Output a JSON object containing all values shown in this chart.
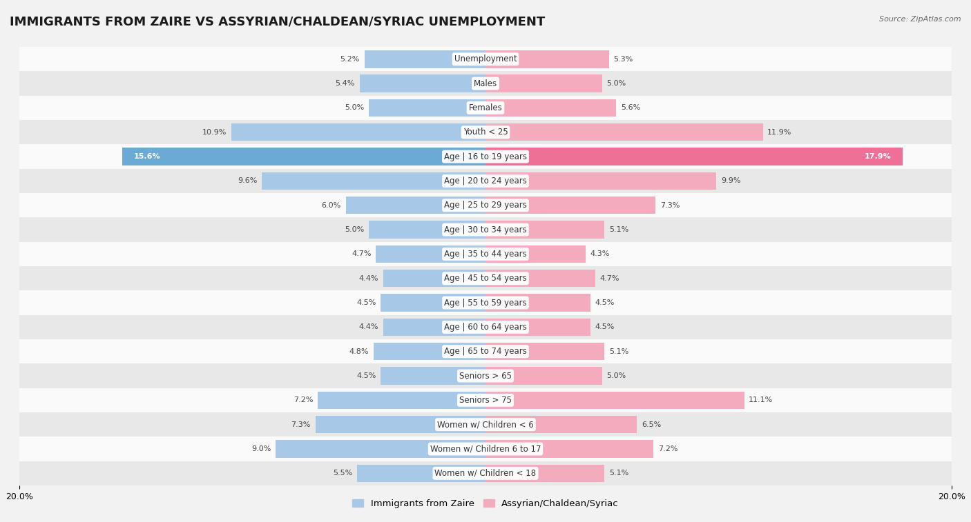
{
  "title": "IMMIGRANTS FROM ZAIRE VS ASSYRIAN/CHALDEAN/SYRIAC UNEMPLOYMENT",
  "source": "Source: ZipAtlas.com",
  "categories": [
    "Unemployment",
    "Males",
    "Females",
    "Youth < 25",
    "Age | 16 to 19 years",
    "Age | 20 to 24 years",
    "Age | 25 to 29 years",
    "Age | 30 to 34 years",
    "Age | 35 to 44 years",
    "Age | 45 to 54 years",
    "Age | 55 to 59 years",
    "Age | 60 to 64 years",
    "Age | 65 to 74 years",
    "Seniors > 65",
    "Seniors > 75",
    "Women w/ Children < 6",
    "Women w/ Children 6 to 17",
    "Women w/ Children < 18"
  ],
  "left_values": [
    5.2,
    5.4,
    5.0,
    10.9,
    15.6,
    9.6,
    6.0,
    5.0,
    4.7,
    4.4,
    4.5,
    4.4,
    4.8,
    4.5,
    7.2,
    7.3,
    9.0,
    5.5
  ],
  "right_values": [
    5.3,
    5.0,
    5.6,
    11.9,
    17.9,
    9.9,
    7.3,
    5.1,
    4.3,
    4.7,
    4.5,
    4.5,
    5.1,
    5.0,
    11.1,
    6.5,
    7.2,
    5.1
  ],
  "left_color": "#a8c8e8",
  "right_color": "#f4abbe",
  "highlight_left_color": "#6aaad4",
  "highlight_right_color": "#ee7096",
  "highlight_rows": [
    4
  ],
  "background_color": "#f2f2f2",
  "row_bg_light": "#fafafa",
  "row_bg_dark": "#e8e8e8",
  "bar_height": 0.72,
  "xlim": 20.0,
  "legend_left": "Immigrants from Zaire",
  "legend_right": "Assyrian/Chaldean/Syriac",
  "title_fontsize": 13,
  "label_fontsize": 8.5,
  "value_fontsize": 8.0
}
